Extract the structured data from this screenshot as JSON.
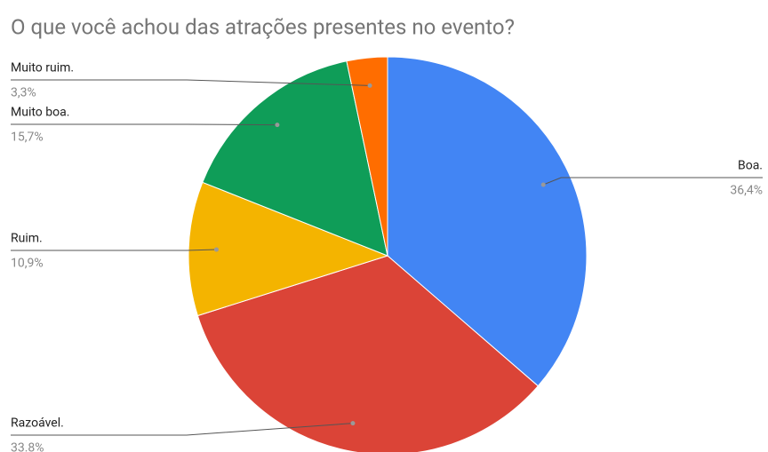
{
  "chart_data": {
    "type": "pie",
    "title": "O que você achou das atrações presentes no evento?",
    "categories": [
      "Boa.",
      "Razoável.",
      "Ruim.",
      "Muito boa.",
      "Muito ruim."
    ],
    "values": [
      36.4,
      33.8,
      10.9,
      15.7,
      3.3
    ],
    "value_labels": [
      "36,4%",
      "33.8%",
      "10,9%",
      "15,7%",
      "3,3%"
    ],
    "colors": [
      "#4285f4",
      "#db4437",
      "#f4b400",
      "#0f9d58",
      "#ff6d00"
    ]
  }
}
